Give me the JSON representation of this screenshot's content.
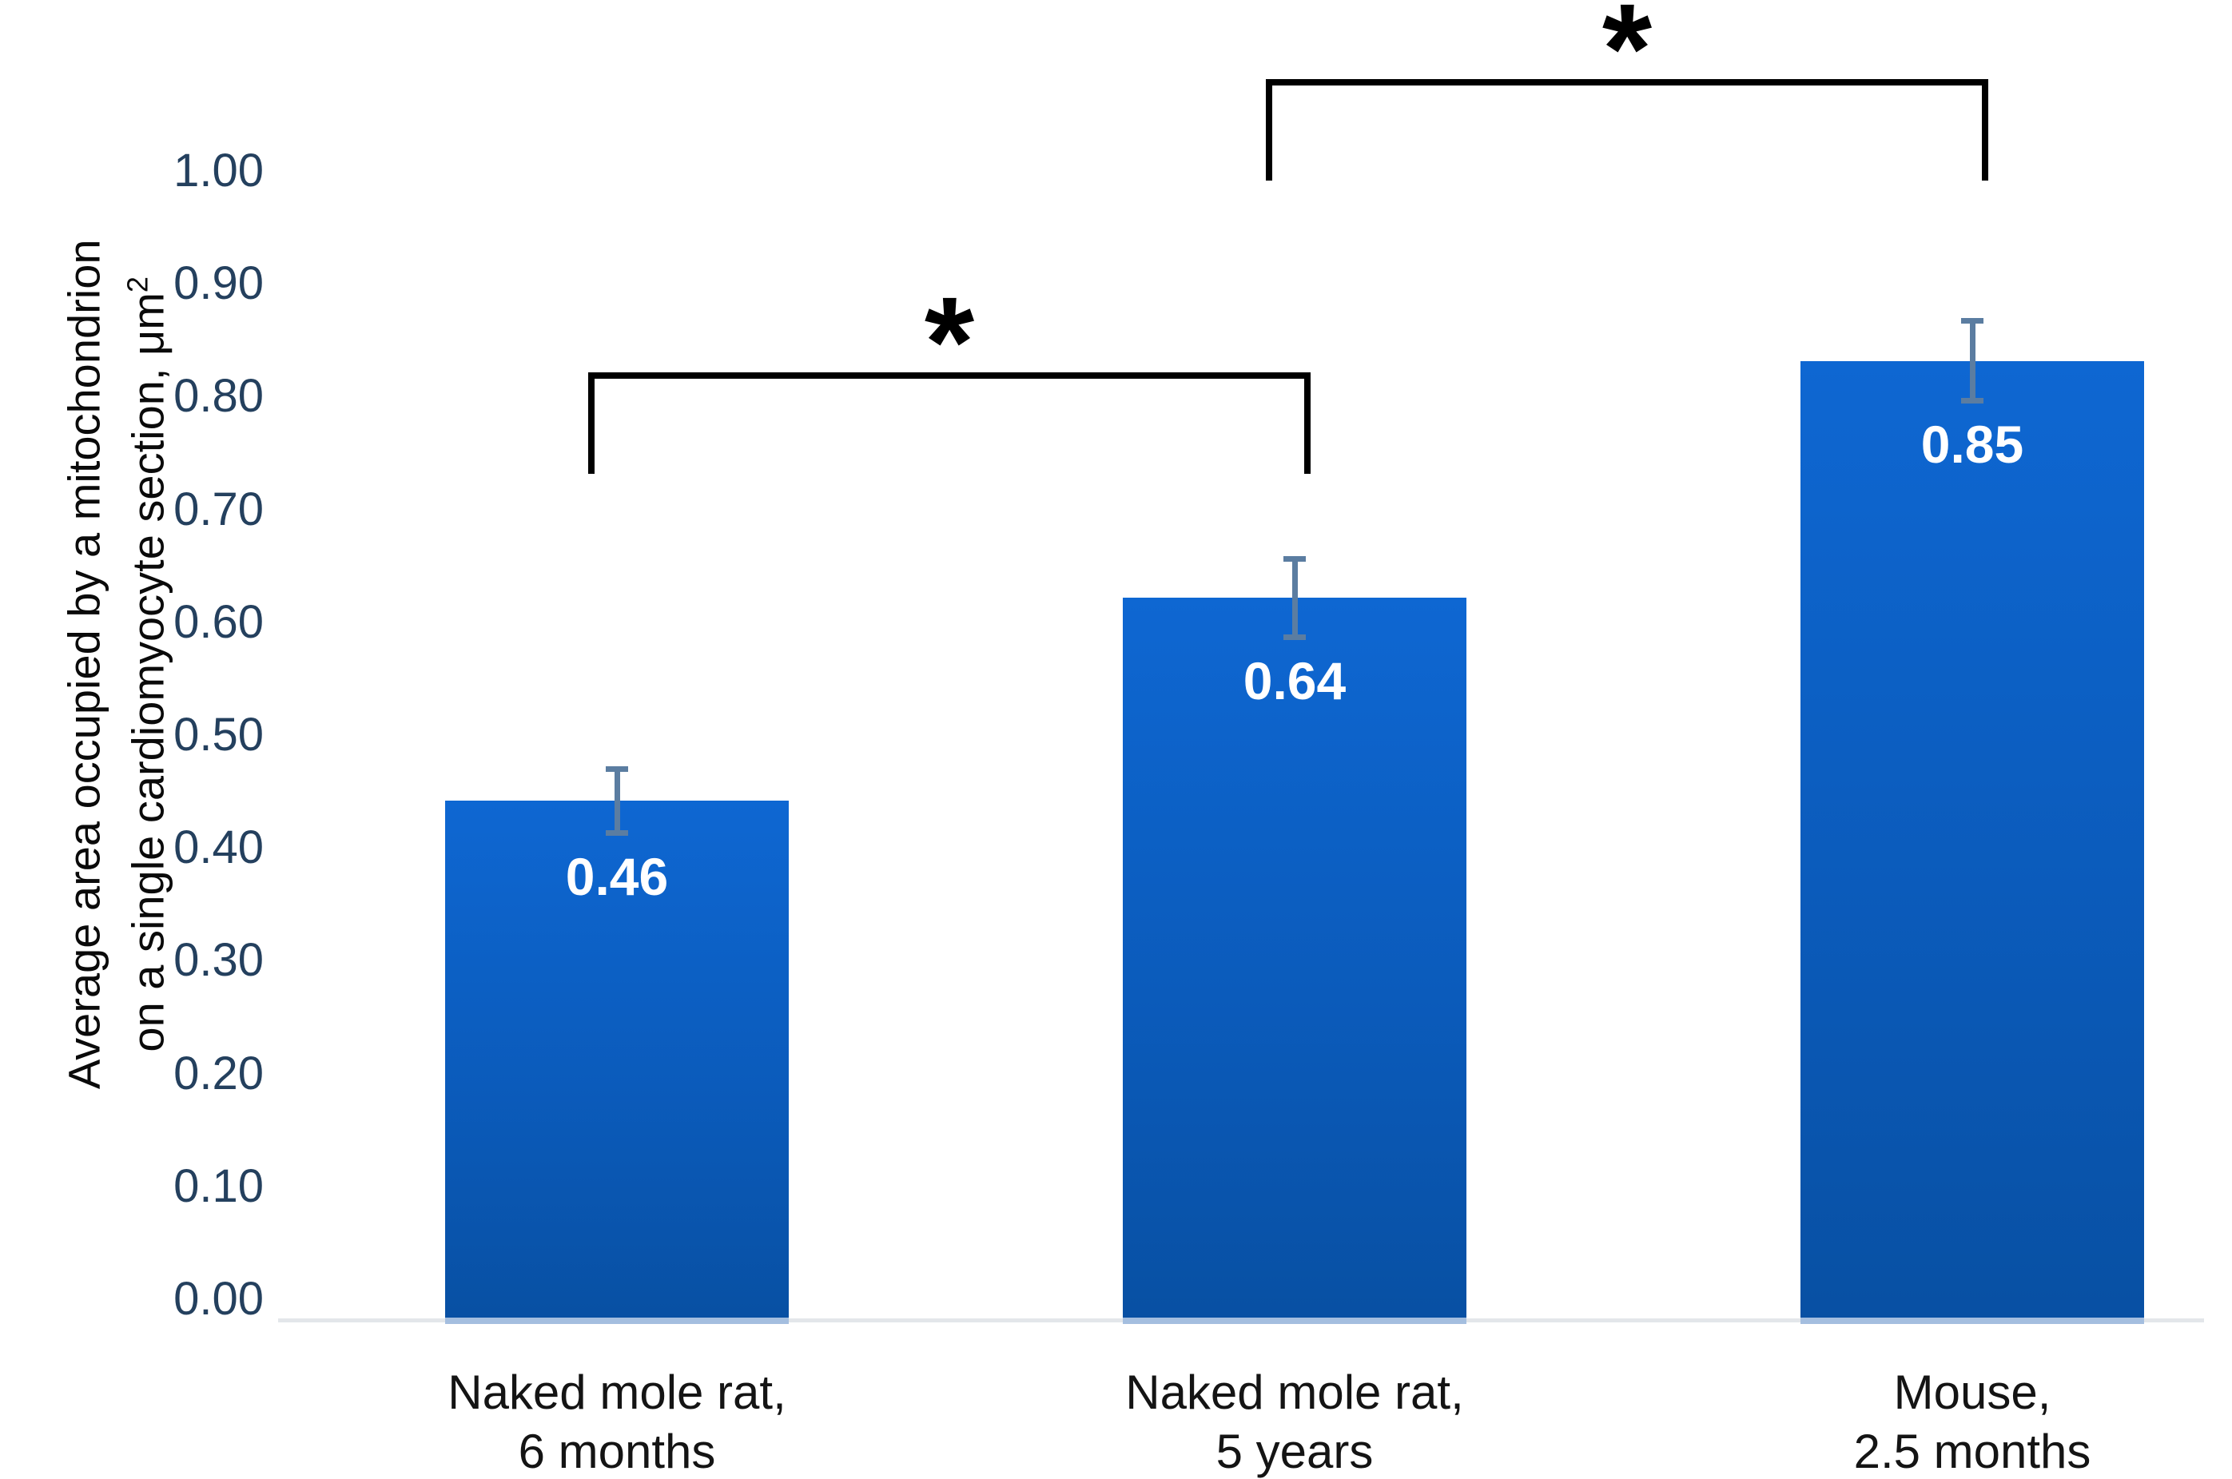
{
  "chart_data": {
    "type": "bar",
    "title": "",
    "ylabel_line1": "Average area occupied by a mitochondrion",
    "ylabel_line2": "on a single cardiomyocyte section, μm",
    "ylabel_sup": "2",
    "xlabel": "",
    "categories": [
      [
        "Naked mole rat,",
        "6 months"
      ],
      [
        "Naked mole rat,",
        "5 years"
      ],
      [
        "Mouse,",
        "2.5 months"
      ]
    ],
    "values": [
      0.46,
      0.64,
      0.85
    ],
    "value_labels": [
      "0.46",
      "0.64",
      "0.85"
    ],
    "errors": [
      0.031,
      0.037,
      0.038
    ],
    "yticks": [
      "0.00",
      "0.10",
      "0.20",
      "0.30",
      "0.40",
      "0.50",
      "0.60",
      "0.70",
      "0.80",
      "0.90",
      "1.00"
    ],
    "ytick_values": [
      0.0,
      0.1,
      0.2,
      0.3,
      0.4,
      0.5,
      0.6,
      0.7,
      0.8,
      0.9,
      1.0
    ],
    "ylim": [
      0,
      1.0
    ],
    "grid": false,
    "legend_position": "none",
    "significance_brackets": [
      {
        "from_bar": 0,
        "to_bar": 1,
        "label": "*",
        "bar_y": 0.84,
        "leg_bottom_y": 0.75
      },
      {
        "from_bar": 1,
        "to_bar": 2,
        "label": "*",
        "bar_y": 1.1,
        "leg_bottom_y": 1.01
      }
    ],
    "colors": {
      "bar_top": "#0e67d2",
      "bar_bottom": "#0850a3",
      "error_bar": "#5b7da1",
      "tick_label": "#24405e",
      "axis_line": "#e3e6ea",
      "bracket": "#000000",
      "value_label": "#ffffff",
      "category_label": "#141414",
      "axis_title": "#0a0a0a"
    }
  }
}
